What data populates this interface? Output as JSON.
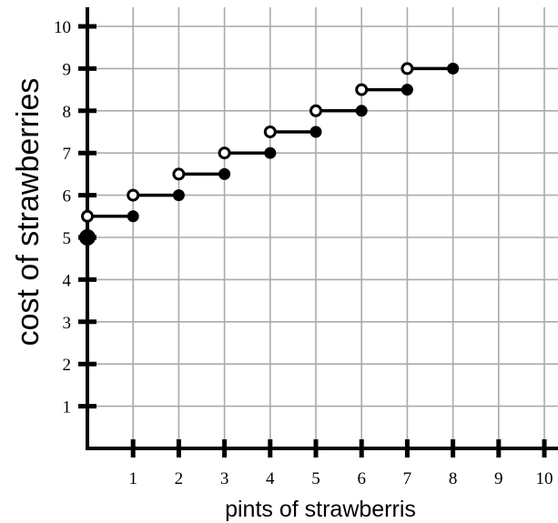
{
  "chart_data": {
    "type": "step",
    "title": "",
    "xlabel": "pints of strawberris",
    "ylabel": "cost of strawberries",
    "xlim": [
      0,
      10
    ],
    "ylim": [
      0,
      10
    ],
    "x_ticks": [
      "1",
      "2",
      "3",
      "4",
      "5",
      "6",
      "7",
      "8",
      "9",
      "10"
    ],
    "y_ticks": [
      "1",
      "2",
      "3",
      "4",
      "5",
      "6",
      "7",
      "8",
      "9",
      "10"
    ],
    "grid": true,
    "legend": "none",
    "start_point": {
      "x": 0,
      "y": 5,
      "closed": true
    },
    "segments": [
      {
        "x_start": 0,
        "x_end": 1,
        "y": 5.5,
        "start_open": true,
        "end_closed": true
      },
      {
        "x_start": 1,
        "x_end": 2,
        "y": 6.0,
        "start_open": true,
        "end_closed": true
      },
      {
        "x_start": 2,
        "x_end": 3,
        "y": 6.5,
        "start_open": true,
        "end_closed": true
      },
      {
        "x_start": 3,
        "x_end": 4,
        "y": 7.0,
        "start_open": true,
        "end_closed": true
      },
      {
        "x_start": 4,
        "x_end": 5,
        "y": 7.5,
        "start_open": true,
        "end_closed": true
      },
      {
        "x_start": 5,
        "x_end": 6,
        "y": 8.0,
        "start_open": true,
        "end_closed": true
      },
      {
        "x_start": 6,
        "x_end": 7,
        "y": 8.5,
        "start_open": true,
        "end_closed": true
      },
      {
        "x_start": 7,
        "x_end": 8,
        "y": 9.0,
        "start_open": true,
        "end_closed": true
      }
    ],
    "colors": {
      "grid": "#aaaaaa",
      "axis": "#000000",
      "series": "#000000",
      "open_marker_fill": "#ffffff"
    }
  }
}
